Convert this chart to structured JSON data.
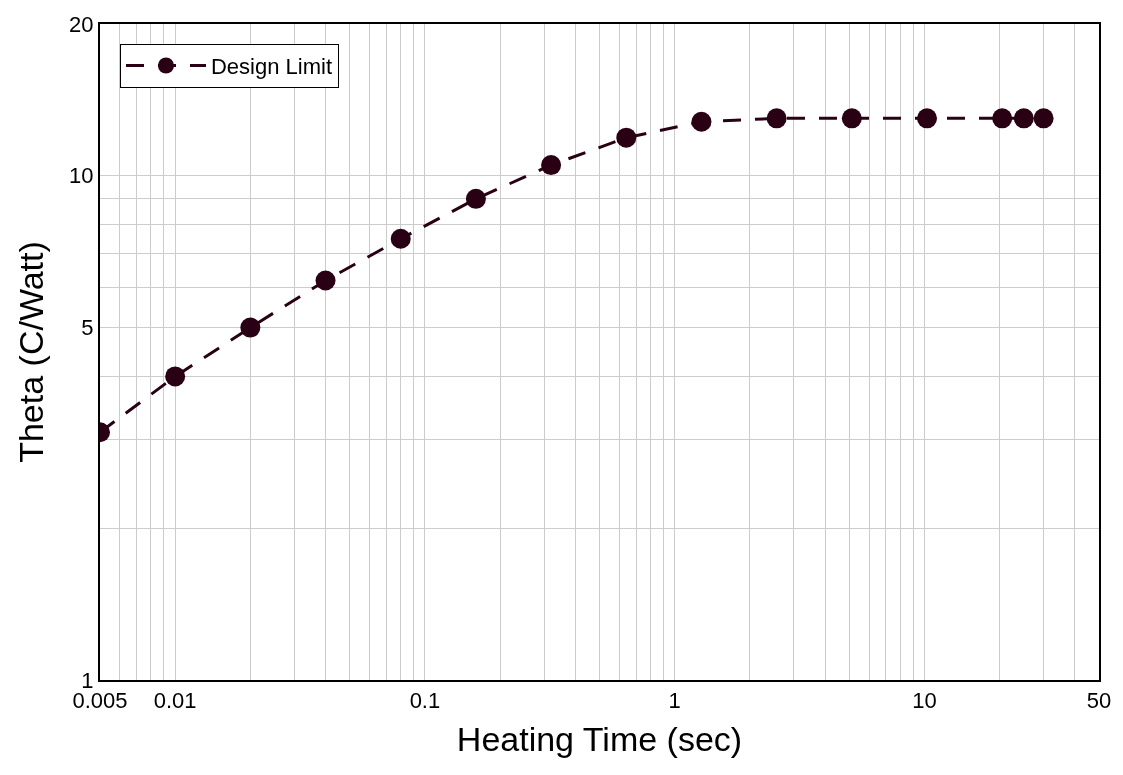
{
  "chart_data": {
    "type": "line",
    "xlabel": "Heating Time (sec)",
    "ylabel": "Theta (C/Watt)",
    "x": [
      0.005,
      0.01,
      0.02,
      0.04,
      0.08,
      0.16,
      0.32,
      0.64,
      1.28,
      2.56,
      5.12,
      10.24,
      20.48,
      25,
      30
    ],
    "series": [
      {
        "name": "Design Limit",
        "color": "#2a0015",
        "values": [
          3.1,
          4.0,
          5.0,
          6.2,
          7.5,
          9.0,
          10.5,
          11.9,
          12.8,
          13.0,
          13.0,
          13.0,
          13.0,
          13.0,
          13.0
        ]
      }
    ],
    "log": "xy",
    "xlim": [
      0.005,
      50
    ],
    "ylim": [
      1,
      20
    ],
    "xticks": [
      0.005,
      {
        "value": 0.006,
        "label": null
      },
      {
        "value": 0.007,
        "label": null
      },
      {
        "value": 0.008,
        "label": null
      },
      {
        "value": 0.009,
        "label": null
      },
      0.01,
      {
        "value": 0.02,
        "label": null
      },
      {
        "value": 0.03,
        "label": null
      },
      {
        "value": 0.04,
        "label": null
      },
      {
        "value": 0.05,
        "label": null
      },
      {
        "value": 0.06,
        "label": null
      },
      {
        "value": 0.07,
        "label": null
      },
      {
        "value": 0.08,
        "label": null
      },
      {
        "value": 0.09,
        "label": null
      },
      0.1,
      {
        "value": 0.2,
        "label": null
      },
      {
        "value": 0.3,
        "label": null
      },
      {
        "value": 0.4,
        "label": null
      },
      {
        "value": 0.5,
        "label": null
      },
      {
        "value": 0.6,
        "label": null
      },
      {
        "value": 0.7,
        "label": null
      },
      {
        "value": 0.8,
        "label": null
      },
      {
        "value": 0.9,
        "label": null
      },
      1,
      {
        "value": 2,
        "label": null
      },
      {
        "value": 3,
        "label": null
      },
      {
        "value": 4,
        "label": null
      },
      {
        "value": 5,
        "label": null
      },
      {
        "value": 6,
        "label": null
      },
      {
        "value": 7,
        "label": null
      },
      {
        "value": 8,
        "label": null
      },
      {
        "value": 9,
        "label": null
      },
      10,
      {
        "value": 20,
        "label": null
      },
      {
        "value": 30,
        "label": null
      },
      {
        "value": 40,
        "label": null
      },
      50
    ],
    "yticks": [
      1,
      {
        "value": 2,
        "label": null
      },
      {
        "value": 3,
        "label": null
      },
      {
        "value": 4,
        "label": null
      },
      5,
      {
        "value": 6,
        "label": null
      },
      {
        "value": 7,
        "label": null
      },
      {
        "value": 8,
        "label": null
      },
      {
        "value": 9,
        "label": null
      },
      10,
      20
    ],
    "grid": true,
    "legend": "top left",
    "marker": "circle",
    "line_style": "dashed"
  }
}
